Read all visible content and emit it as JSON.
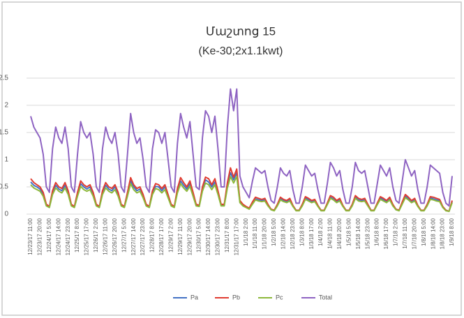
{
  "chart_data": {
    "type": "line",
    "title": "Մաշտոց 15",
    "subtitle": "(Ke-30;2x1.1kwt)",
    "categories": [
      "12/23/17 11:00",
      null,
      null,
      "12/23/17 20:00",
      null,
      null,
      "12/24/17 5:00",
      null,
      null,
      "12/24/17 14:00",
      null,
      null,
      "12/24/17 23:00",
      null,
      null,
      "12/25/17 8:00",
      null,
      null,
      "12/25/17 17:00",
      null,
      null,
      "12/26/17 2:00",
      null,
      null,
      "12/26/17 11:00",
      null,
      null,
      "12/26/17 20:00",
      null,
      null,
      "12/27/17 5:00",
      null,
      null,
      "12/27/17 14:00",
      null,
      null,
      "12/27/17 23:00",
      null,
      null,
      "12/28/17 8:00",
      null,
      null,
      "12/28/17 17:00",
      null,
      null,
      "12/29/17 2:00",
      null,
      null,
      "12/29/17 11:00",
      null,
      null,
      "12/29/17 20:00",
      null,
      null,
      "12/30/17 5:00",
      null,
      null,
      "12/30/17 14:00",
      null,
      null,
      "12/30/17 23:00",
      null,
      null,
      "12/31/17 8:00",
      null,
      null,
      "12/31/17 17:00",
      null,
      null,
      "1/1/18 2:00",
      null,
      null,
      "1/1/18 11:00",
      null,
      null,
      "1/1/18 20:00",
      null,
      null,
      "1/2/18 5:00",
      null,
      null,
      "1/2/18 14:00",
      null,
      null,
      "1/2/18 23:00",
      null,
      null,
      "1/3/18 8:00",
      null,
      null,
      "1/3/18 17:00",
      null,
      null,
      "1/4/18 2:00",
      null,
      null,
      "1/4/18 11:00",
      null,
      null,
      "1/4/18 20:00",
      null,
      null,
      "1/5/18 5:00",
      null,
      null,
      "1/5/18 14:00",
      null,
      null,
      "1/5/18 23:00",
      null,
      null,
      "1/6/18 8:00",
      null,
      null,
      "1/6/18 17:00",
      null,
      null,
      "1/7/18 2:00",
      null,
      null,
      "1/7/18 11:00",
      null,
      null,
      "1/7/18 20:00",
      null,
      null,
      "1/8/18 5:00",
      null,
      null,
      "1/8/18 14:00",
      null,
      null,
      "1/8/18 23:00",
      null,
      null,
      "1/9/18 8:00"
    ],
    "series": [
      {
        "name": "Pa",
        "color": "#4472c4",
        "values": [
          0.59,
          0.53,
          0.5,
          0.46,
          0.36,
          0.17,
          0.13,
          0.4,
          0.53,
          0.46,
          0.43,
          0.53,
          0.4,
          0.17,
          0.13,
          0.36,
          0.56,
          0.5,
          0.46,
          0.5,
          0.36,
          0.17,
          0.13,
          0.4,
          0.53,
          0.46,
          0.43,
          0.5,
          0.36,
          0.17,
          0.13,
          0.36,
          0.61,
          0.5,
          0.43,
          0.46,
          0.33,
          0.17,
          0.13,
          0.4,
          0.51,
          0.5,
          0.43,
          0.5,
          0.33,
          0.17,
          0.13,
          0.43,
          0.61,
          0.53,
          0.46,
          0.56,
          0.36,
          0.17,
          0.15,
          0.46,
          0.63,
          0.59,
          0.5,
          0.59,
          0.4,
          0.17,
          0.17,
          0.53,
          0.76,
          0.63,
          0.76,
          0.23,
          0.17,
          0.13,
          0.1,
          0.2,
          0.28,
          0.26,
          0.25,
          0.26,
          0.17,
          0.08,
          0.07,
          0.17,
          0.28,
          0.25,
          0.23,
          0.26,
          0.15,
          0.07,
          0.07,
          0.17,
          0.3,
          0.26,
          0.23,
          0.25,
          0.15,
          0.07,
          0.07,
          0.18,
          0.31,
          0.28,
          0.23,
          0.26,
          0.15,
          0.07,
          0.07,
          0.17,
          0.31,
          0.26,
          0.25,
          0.26,
          0.17,
          0.07,
          0.07,
          0.18,
          0.3,
          0.26,
          0.23,
          0.28,
          0.17,
          0.08,
          0.07,
          0.2,
          0.33,
          0.28,
          0.23,
          0.26,
          0.15,
          0.07,
          0.07,
          0.17,
          0.3,
          0.28,
          0.26,
          0.25,
          0.13,
          0.07,
          0.05,
          0.23
        ]
      },
      {
        "name": "Pb",
        "color": "#e03c31",
        "values": [
          0.65,
          0.58,
          0.54,
          0.5,
          0.4,
          0.18,
          0.14,
          0.43,
          0.58,
          0.5,
          0.47,
          0.58,
          0.43,
          0.18,
          0.14,
          0.4,
          0.61,
          0.54,
          0.5,
          0.54,
          0.4,
          0.18,
          0.14,
          0.43,
          0.58,
          0.5,
          0.47,
          0.54,
          0.4,
          0.18,
          0.14,
          0.4,
          0.67,
          0.54,
          0.47,
          0.5,
          0.36,
          0.18,
          0.14,
          0.43,
          0.56,
          0.54,
          0.47,
          0.54,
          0.36,
          0.18,
          0.14,
          0.47,
          0.67,
          0.58,
          0.5,
          0.61,
          0.4,
          0.18,
          0.16,
          0.5,
          0.68,
          0.65,
          0.54,
          0.65,
          0.43,
          0.18,
          0.18,
          0.58,
          0.85,
          0.68,
          0.83,
          0.25,
          0.18,
          0.14,
          0.11,
          0.22,
          0.31,
          0.29,
          0.27,
          0.29,
          0.18,
          0.09,
          0.07,
          0.18,
          0.31,
          0.27,
          0.25,
          0.29,
          0.16,
          0.07,
          0.07,
          0.18,
          0.32,
          0.29,
          0.25,
          0.27,
          0.16,
          0.07,
          0.07,
          0.2,
          0.34,
          0.31,
          0.25,
          0.29,
          0.16,
          0.07,
          0.07,
          0.18,
          0.34,
          0.29,
          0.27,
          0.29,
          0.18,
          0.07,
          0.07,
          0.2,
          0.32,
          0.29,
          0.25,
          0.31,
          0.18,
          0.09,
          0.07,
          0.22,
          0.36,
          0.31,
          0.25,
          0.29,
          0.16,
          0.07,
          0.07,
          0.18,
          0.32,
          0.31,
          0.29,
          0.27,
          0.14,
          0.07,
          0.05,
          0.25
        ]
      },
      {
        "name": "Pc",
        "color": "#8db83b",
        "values": [
          0.54,
          0.48,
          0.45,
          0.42,
          0.33,
          0.15,
          0.12,
          0.36,
          0.48,
          0.42,
          0.39,
          0.48,
          0.36,
          0.15,
          0.12,
          0.33,
          0.51,
          0.45,
          0.42,
          0.45,
          0.33,
          0.15,
          0.12,
          0.36,
          0.48,
          0.42,
          0.39,
          0.45,
          0.33,
          0.15,
          0.12,
          0.33,
          0.56,
          0.45,
          0.39,
          0.42,
          0.3,
          0.15,
          0.12,
          0.36,
          0.47,
          0.45,
          0.39,
          0.45,
          0.3,
          0.15,
          0.12,
          0.39,
          0.56,
          0.48,
          0.42,
          0.51,
          0.33,
          0.15,
          0.14,
          0.42,
          0.57,
          0.54,
          0.45,
          0.54,
          0.36,
          0.15,
          0.15,
          0.48,
          0.69,
          0.57,
          0.69,
          0.21,
          0.15,
          0.12,
          0.09,
          0.18,
          0.26,
          0.24,
          0.23,
          0.24,
          0.15,
          0.08,
          0.06,
          0.15,
          0.26,
          0.23,
          0.21,
          0.24,
          0.14,
          0.06,
          0.06,
          0.15,
          0.27,
          0.24,
          0.21,
          0.23,
          0.14,
          0.06,
          0.06,
          0.17,
          0.29,
          0.26,
          0.21,
          0.24,
          0.14,
          0.06,
          0.06,
          0.15,
          0.29,
          0.24,
          0.23,
          0.24,
          0.15,
          0.06,
          0.06,
          0.17,
          0.27,
          0.24,
          0.21,
          0.26,
          0.15,
          0.08,
          0.06,
          0.18,
          0.3,
          0.26,
          0.21,
          0.24,
          0.14,
          0.06,
          0.06,
          0.15,
          0.27,
          0.26,
          0.24,
          0.23,
          0.12,
          0.06,
          0.05,
          0.21
        ]
      },
      {
        "name": "Total",
        "color": "#8e63c2",
        "values": [
          1.8,
          1.6,
          1.5,
          1.4,
          1.1,
          0.5,
          0.4,
          1.2,
          1.6,
          1.4,
          1.3,
          1.6,
          1.2,
          0.5,
          0.4,
          1.1,
          1.7,
          1.5,
          1.4,
          1.5,
          1.1,
          0.5,
          0.4,
          1.2,
          1.6,
          1.4,
          1.3,
          1.5,
          1.1,
          0.5,
          0.4,
          1.1,
          1.85,
          1.5,
          1.3,
          1.4,
          1.0,
          0.5,
          0.4,
          1.2,
          1.55,
          1.5,
          1.3,
          1.5,
          1.0,
          0.5,
          0.4,
          1.3,
          1.85,
          1.6,
          1.4,
          1.7,
          1.1,
          0.5,
          0.45,
          1.4,
          1.9,
          1.8,
          1.5,
          1.8,
          1.2,
          0.5,
          0.5,
          1.6,
          2.3,
          1.9,
          2.3,
          0.7,
          0.5,
          0.4,
          0.3,
          0.6,
          0.85,
          0.8,
          0.75,
          0.8,
          0.5,
          0.25,
          0.2,
          0.5,
          0.85,
          0.75,
          0.7,
          0.8,
          0.45,
          0.2,
          0.2,
          0.5,
          0.9,
          0.8,
          0.7,
          0.75,
          0.45,
          0.2,
          0.2,
          0.55,
          0.95,
          0.85,
          0.7,
          0.8,
          0.45,
          0.2,
          0.2,
          0.5,
          0.95,
          0.8,
          0.75,
          0.8,
          0.5,
          0.2,
          0.2,
          0.55,
          0.9,
          0.8,
          0.7,
          0.85,
          0.5,
          0.25,
          0.2,
          0.6,
          1.0,
          0.85,
          0.7,
          0.8,
          0.45,
          0.2,
          0.2,
          0.5,
          0.9,
          0.85,
          0.8,
          0.75,
          0.4,
          0.2,
          0.15,
          0.7
        ]
      }
    ],
    "ylim": [
      0,
      2.5
    ],
    "yticks": [
      0,
      0.5,
      1,
      1.5,
      2,
      2.5
    ],
    "grid": true,
    "legend": "bottom"
  }
}
